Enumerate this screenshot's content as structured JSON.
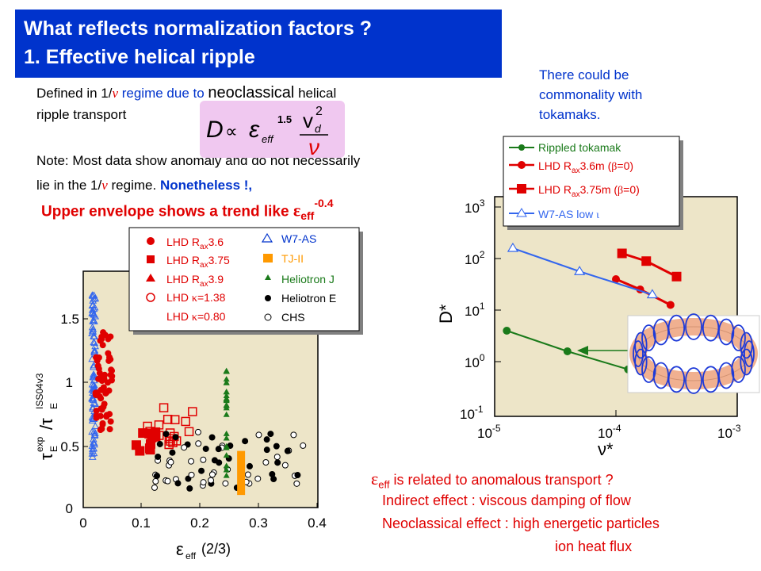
{
  "title": {
    "line1": "What reflects normalization factors ?",
    "line2": "1. Effective helical ripple"
  },
  "intro": {
    "defined_prefix": "Defined in 1/",
    "nu": "ν",
    "defined_mid": " regime due to ",
    "neoclassical": "neoclassical",
    "defined_suffix": " helical",
    "line2": "ripple transport",
    "note1": "Note: Most data show anomaly and do not necessarily",
    "note2_prefix": "lie in the 1/",
    "note2_suffix": " regime.",
    "nonetheless": "Nonetheless !,"
  },
  "equation": {
    "D": "D",
    "prop": "∝",
    "eps": "ε",
    "eff": "eff",
    "pow": "1.5",
    "v": "v",
    "d": "d",
    "sq": "2",
    "nu": "ν"
  },
  "envelope": {
    "text": "Upper envelope shows a trend like ",
    "eps": "ε",
    "sub": "eff",
    "sup": "-0.4"
  },
  "commonality": {
    "line1": "There could be",
    "line2": "commonality with",
    "line3": "tokamaks."
  },
  "left_chart": {
    "ylabel_tau": "τ",
    "ylabel_E": "E",
    "ylabel_exp": "exp",
    "ylabel_slash": "/τ",
    "ylabel_iss": "ISS04v3",
    "xlabel_eps": "ε",
    "xlabel_eff": "eff",
    "xlabel_rest": "(2/3)",
    "x_ticks": [
      "0",
      "0.1",
      "0.2",
      "0.3",
      "0.4"
    ],
    "y_ticks": [
      "0",
      "0.5",
      "1",
      "1.5"
    ],
    "legend": {
      "lhd_prefix": "LHD R",
      "ax": "ax",
      "r36": "3.6",
      "r375": "3.75",
      "r39": "3.9",
      "lhd_k": "LHD ",
      "kappa": "κ",
      "k138": "=1.38",
      "k080": "=0.80",
      "w7as": "W7-AS",
      "tjii": "TJ-II",
      "heliotronj": "Heliotron J",
      "heliotrone": "Heliotron E",
      "chs": "CHS"
    }
  },
  "right_chart": {
    "ylabel": "D*",
    "xlabel": "ν*",
    "x_ticks": [
      {
        "base": "10",
        "exp": "-5"
      },
      {
        "base": "10",
        "exp": "-4"
      },
      {
        "base": "10",
        "exp": "-3"
      }
    ],
    "y_ticks": [
      {
        "base": "10",
        "exp": "-1"
      },
      {
        "base": "10",
        "exp": "0"
      },
      {
        "base": "10",
        "exp": "1"
      },
      {
        "base": "10",
        "exp": "2"
      },
      {
        "base": "10",
        "exp": "3"
      }
    ],
    "legend": {
      "rippled": "Rippled tokamak",
      "lhd36": "LHD R",
      "lhd36b": "3.6m (",
      "lhd375b": "3.75m (",
      "beta": "β",
      "b0": "=0)",
      "ax": "ax",
      "w7as": "W7-AS low ",
      "iota": "ι"
    }
  },
  "bottom": {
    "eps": "ε",
    "eff": "eff",
    "line1": " is related to anomalous transport ?",
    "line2": "Indirect effect : viscous damping of flow",
    "line3": "Neoclassical effect : high energetic particles",
    "line4": "ion heat flux"
  },
  "colors": {
    "title_bg": "#0033cc",
    "plot_bg": "#ede5c8",
    "red": "#e00000",
    "blue": "#0033cc",
    "green": "#1a7a1a",
    "orange": "#ff9900",
    "torus": "#f0b090"
  }
}
